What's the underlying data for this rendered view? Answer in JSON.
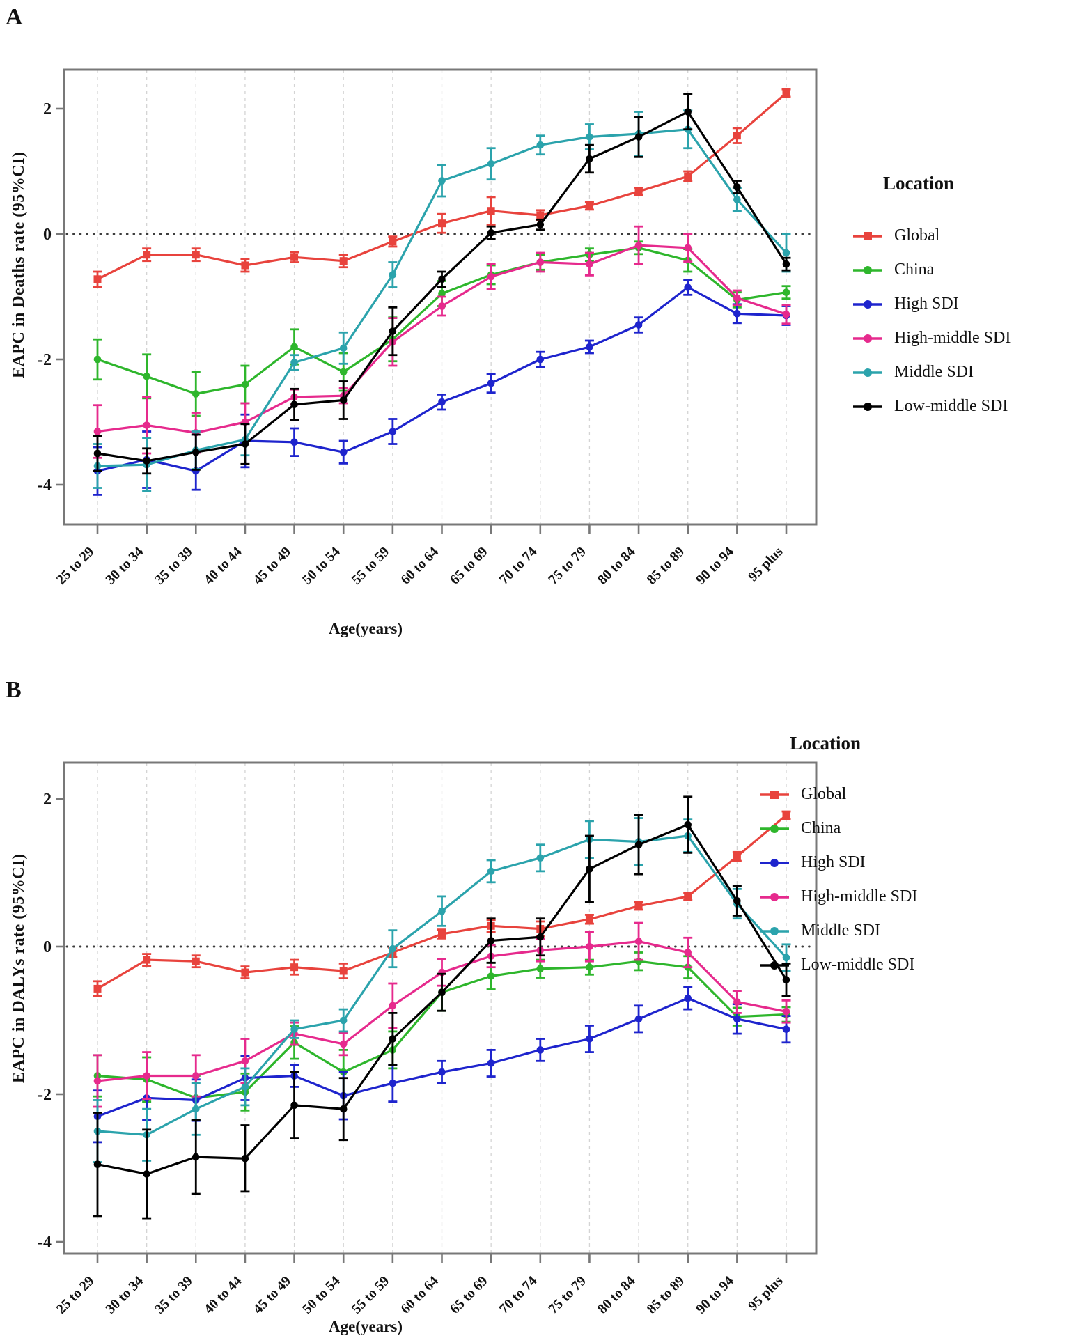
{
  "figure": {
    "background": "#ffffff",
    "axis_color": "#787878",
    "grid_color": "#d4d4d4",
    "zero_line_color": "#3c3c3c",
    "text_color": "#111111"
  },
  "panels": [
    {
      "panel_label": "A",
      "ylabel": "EAPC in Deaths rate (95%CI)",
      "xlabel": "Age(years)",
      "legend": {
        "title": "Location"
      }
    },
    {
      "panel_label": "B",
      "ylabel": "EAPC in DALYs rate (95%CI)",
      "xlabel": "Age(years)",
      "legend": {
        "title": "Location"
      }
    }
  ],
  "chart_data": [
    {
      "type": "line",
      "title": "EAPC in Deaths rate (95%CI) by age group",
      "xlabel": "Age(years)",
      "ylabel": "EAPC in Deaths rate (95%CI)",
      "categories": [
        "25 to 29",
        "30 to 34",
        "35 to 39",
        "40 to 44",
        "45 to 49",
        "50 to 54",
        "55 to 59",
        "60 to 64",
        "65 to 69",
        "70 to 74",
        "75 to 79",
        "80 to 84",
        "85 to 89",
        "90 to 94",
        "95 plus"
      ],
      "yticks": [
        2,
        0,
        -2,
        -4
      ],
      "ylim": [
        -4.6,
        2.6
      ],
      "grid": "vertical-dashed",
      "zero_reference_line": true,
      "legend_position": "right",
      "series": [
        {
          "name": "Global",
          "color": "#e8433d",
          "marker": "square",
          "values": [
            -0.72,
            -0.33,
            -0.33,
            -0.5,
            -0.37,
            -0.43,
            -0.12,
            0.17,
            0.37,
            0.3,
            0.45,
            0.68,
            0.92,
            1.57,
            2.25
          ],
          "ci": [
            0.12,
            0.1,
            0.1,
            0.1,
            0.08,
            0.1,
            0.08,
            0.15,
            0.22,
            0.08,
            0.06,
            0.06,
            0.08,
            0.12,
            0.06
          ]
        },
        {
          "name": "China",
          "color": "#2eb62c",
          "marker": "circle",
          "values": [
            -2.0,
            -2.27,
            -2.55,
            -2.4,
            -1.8,
            -2.2,
            -1.68,
            -0.95,
            -0.65,
            -0.45,
            -0.33,
            -0.22,
            -0.42,
            -1.05,
            -0.93
          ],
          "ci": [
            0.32,
            0.35,
            0.35,
            0.3,
            0.28,
            0.3,
            0.35,
            0.2,
            0.15,
            0.12,
            0.1,
            0.1,
            0.18,
            0.12,
            0.1
          ]
        },
        {
          "name": "High SDI",
          "color": "#1e24cd",
          "marker": "circle",
          "values": [
            -3.78,
            -3.6,
            -3.78,
            -3.3,
            -3.32,
            -3.48,
            -3.15,
            -2.68,
            -2.38,
            -2.0,
            -1.8,
            -1.45,
            -0.85,
            -1.27,
            -1.3
          ],
          "ci": [
            0.38,
            0.45,
            0.3,
            0.42,
            0.22,
            0.18,
            0.2,
            0.12,
            0.15,
            0.12,
            0.1,
            0.12,
            0.12,
            0.15,
            0.15
          ]
        },
        {
          "name": "High-middle SDI",
          "color": "#e62a8d",
          "marker": "circle",
          "values": [
            -3.15,
            -3.05,
            -3.17,
            -3.0,
            -2.6,
            -2.58,
            -1.72,
            -1.15,
            -0.68,
            -0.45,
            -0.48,
            -0.18,
            -0.22,
            -1.02,
            -1.28
          ],
          "ci": [
            0.42,
            0.45,
            0.32,
            0.3,
            0.12,
            0.12,
            0.38,
            0.15,
            0.2,
            0.15,
            0.18,
            0.3,
            0.22,
            0.12,
            0.15
          ]
        },
        {
          "name": "Middle SDI",
          "color": "#2ba3ac",
          "marker": "circle",
          "values": [
            -3.7,
            -3.68,
            -3.45,
            -3.28,
            -2.05,
            -1.82,
            -0.65,
            0.85,
            1.12,
            1.42,
            1.55,
            1.6,
            1.67,
            0.55,
            -0.3
          ],
          "ci": [
            0.35,
            0.42,
            0.3,
            0.25,
            0.12,
            0.25,
            0.2,
            0.25,
            0.25,
            0.15,
            0.2,
            0.35,
            0.3,
            0.18,
            0.3
          ]
        },
        {
          "name": "Low-middle SDI",
          "color": "#000000",
          "marker": "circle",
          "values": [
            -3.5,
            -3.62,
            -3.48,
            -3.35,
            -2.72,
            -2.65,
            -1.55,
            -0.72,
            0.02,
            0.15,
            1.2,
            1.55,
            1.95,
            0.75,
            -0.48
          ],
          "ci": [
            0.28,
            0.2,
            0.28,
            0.32,
            0.25,
            0.3,
            0.38,
            0.12,
            0.1,
            0.08,
            0.22,
            0.32,
            0.28,
            0.1,
            0.1
          ]
        }
      ]
    },
    {
      "type": "line",
      "title": "EAPC in DALYs rate (95%CI) by age group",
      "xlabel": "Age(years)",
      "ylabel": "EAPC in DALYs rate (95%CI)",
      "categories": [
        "25 to 29",
        "30 to 34",
        "35 to 39",
        "40 to 44",
        "45 to 49",
        "50 to 54",
        "55 to 59",
        "60 to 64",
        "65 to 69",
        "70 to 74",
        "75 to 79",
        "80 to 84",
        "85 to 89",
        "90 to 94",
        "95 plus"
      ],
      "yticks": [
        2,
        0,
        -2,
        -4
      ],
      "ylim": [
        -4.2,
        2.5
      ],
      "grid": "vertical-dashed",
      "zero_reference_line": true,
      "legend_position": "right",
      "series": [
        {
          "name": "Global",
          "color": "#e8433d",
          "marker": "square",
          "values": [
            -0.57,
            -0.18,
            -0.2,
            -0.35,
            -0.28,
            -0.33,
            -0.08,
            0.17,
            0.28,
            0.24,
            0.37,
            0.55,
            0.68,
            1.22,
            1.78
          ],
          "ci": [
            0.1,
            0.08,
            0.08,
            0.08,
            0.1,
            0.1,
            0.06,
            0.06,
            0.08,
            0.1,
            0.06,
            0.05,
            0.05,
            0.06,
            0.05
          ]
        },
        {
          "name": "China",
          "color": "#2eb62c",
          "marker": "circle",
          "values": [
            -1.75,
            -1.8,
            -2.05,
            -1.97,
            -1.3,
            -1.7,
            -1.4,
            -0.62,
            -0.4,
            -0.3,
            -0.28,
            -0.2,
            -0.28,
            -0.95,
            -0.92
          ],
          "ci": [
            0.28,
            0.3,
            0.3,
            0.25,
            0.22,
            0.3,
            0.25,
            0.25,
            0.18,
            0.12,
            0.1,
            0.12,
            0.15,
            0.12,
            0.1
          ]
        },
        {
          "name": "High SDI",
          "color": "#1e24cd",
          "marker": "circle",
          "values": [
            -2.3,
            -2.05,
            -2.08,
            -1.78,
            -1.75,
            -2.02,
            -1.85,
            -1.7,
            -1.58,
            -1.4,
            -1.25,
            -0.98,
            -0.7,
            -0.98,
            -1.12
          ],
          "ci": [
            0.35,
            0.3,
            0.28,
            0.3,
            0.15,
            0.32,
            0.25,
            0.15,
            0.18,
            0.15,
            0.18,
            0.18,
            0.15,
            0.2,
            0.18
          ]
        },
        {
          "name": "High-middle SDI",
          "color": "#e62a8d",
          "marker": "circle",
          "values": [
            -1.82,
            -1.75,
            -1.75,
            -1.55,
            -1.18,
            -1.32,
            -0.8,
            -0.35,
            -0.13,
            -0.05,
            0.0,
            0.07,
            -0.08,
            -0.75,
            -0.88
          ],
          "ci": [
            0.35,
            0.32,
            0.28,
            0.3,
            0.15,
            0.15,
            0.3,
            0.18,
            0.15,
            0.15,
            0.2,
            0.25,
            0.2,
            0.15,
            0.15
          ]
        },
        {
          "name": "Middle SDI",
          "color": "#2ba3ac",
          "marker": "circle",
          "values": [
            -2.5,
            -2.55,
            -2.2,
            -1.9,
            -1.12,
            -1.0,
            -0.03,
            0.48,
            1.02,
            1.2,
            1.45,
            1.42,
            1.5,
            0.58,
            -0.15
          ],
          "ci": [
            0.42,
            0.35,
            0.35,
            0.25,
            0.12,
            0.15,
            0.25,
            0.2,
            0.15,
            0.18,
            0.25,
            0.32,
            0.22,
            0.2,
            0.18
          ]
        },
        {
          "name": "Low-middle SDI",
          "color": "#000000",
          "marker": "circle",
          "values": [
            -2.95,
            -3.08,
            -2.85,
            -2.87,
            -2.15,
            -2.2,
            -1.25,
            -0.62,
            0.08,
            0.13,
            1.05,
            1.38,
            1.65,
            0.62,
            -0.45
          ],
          "ci": [
            0.7,
            0.6,
            0.5,
            0.45,
            0.45,
            0.42,
            0.35,
            0.25,
            0.3,
            0.25,
            0.45,
            0.4,
            0.38,
            0.2,
            0.22
          ]
        }
      ]
    }
  ]
}
